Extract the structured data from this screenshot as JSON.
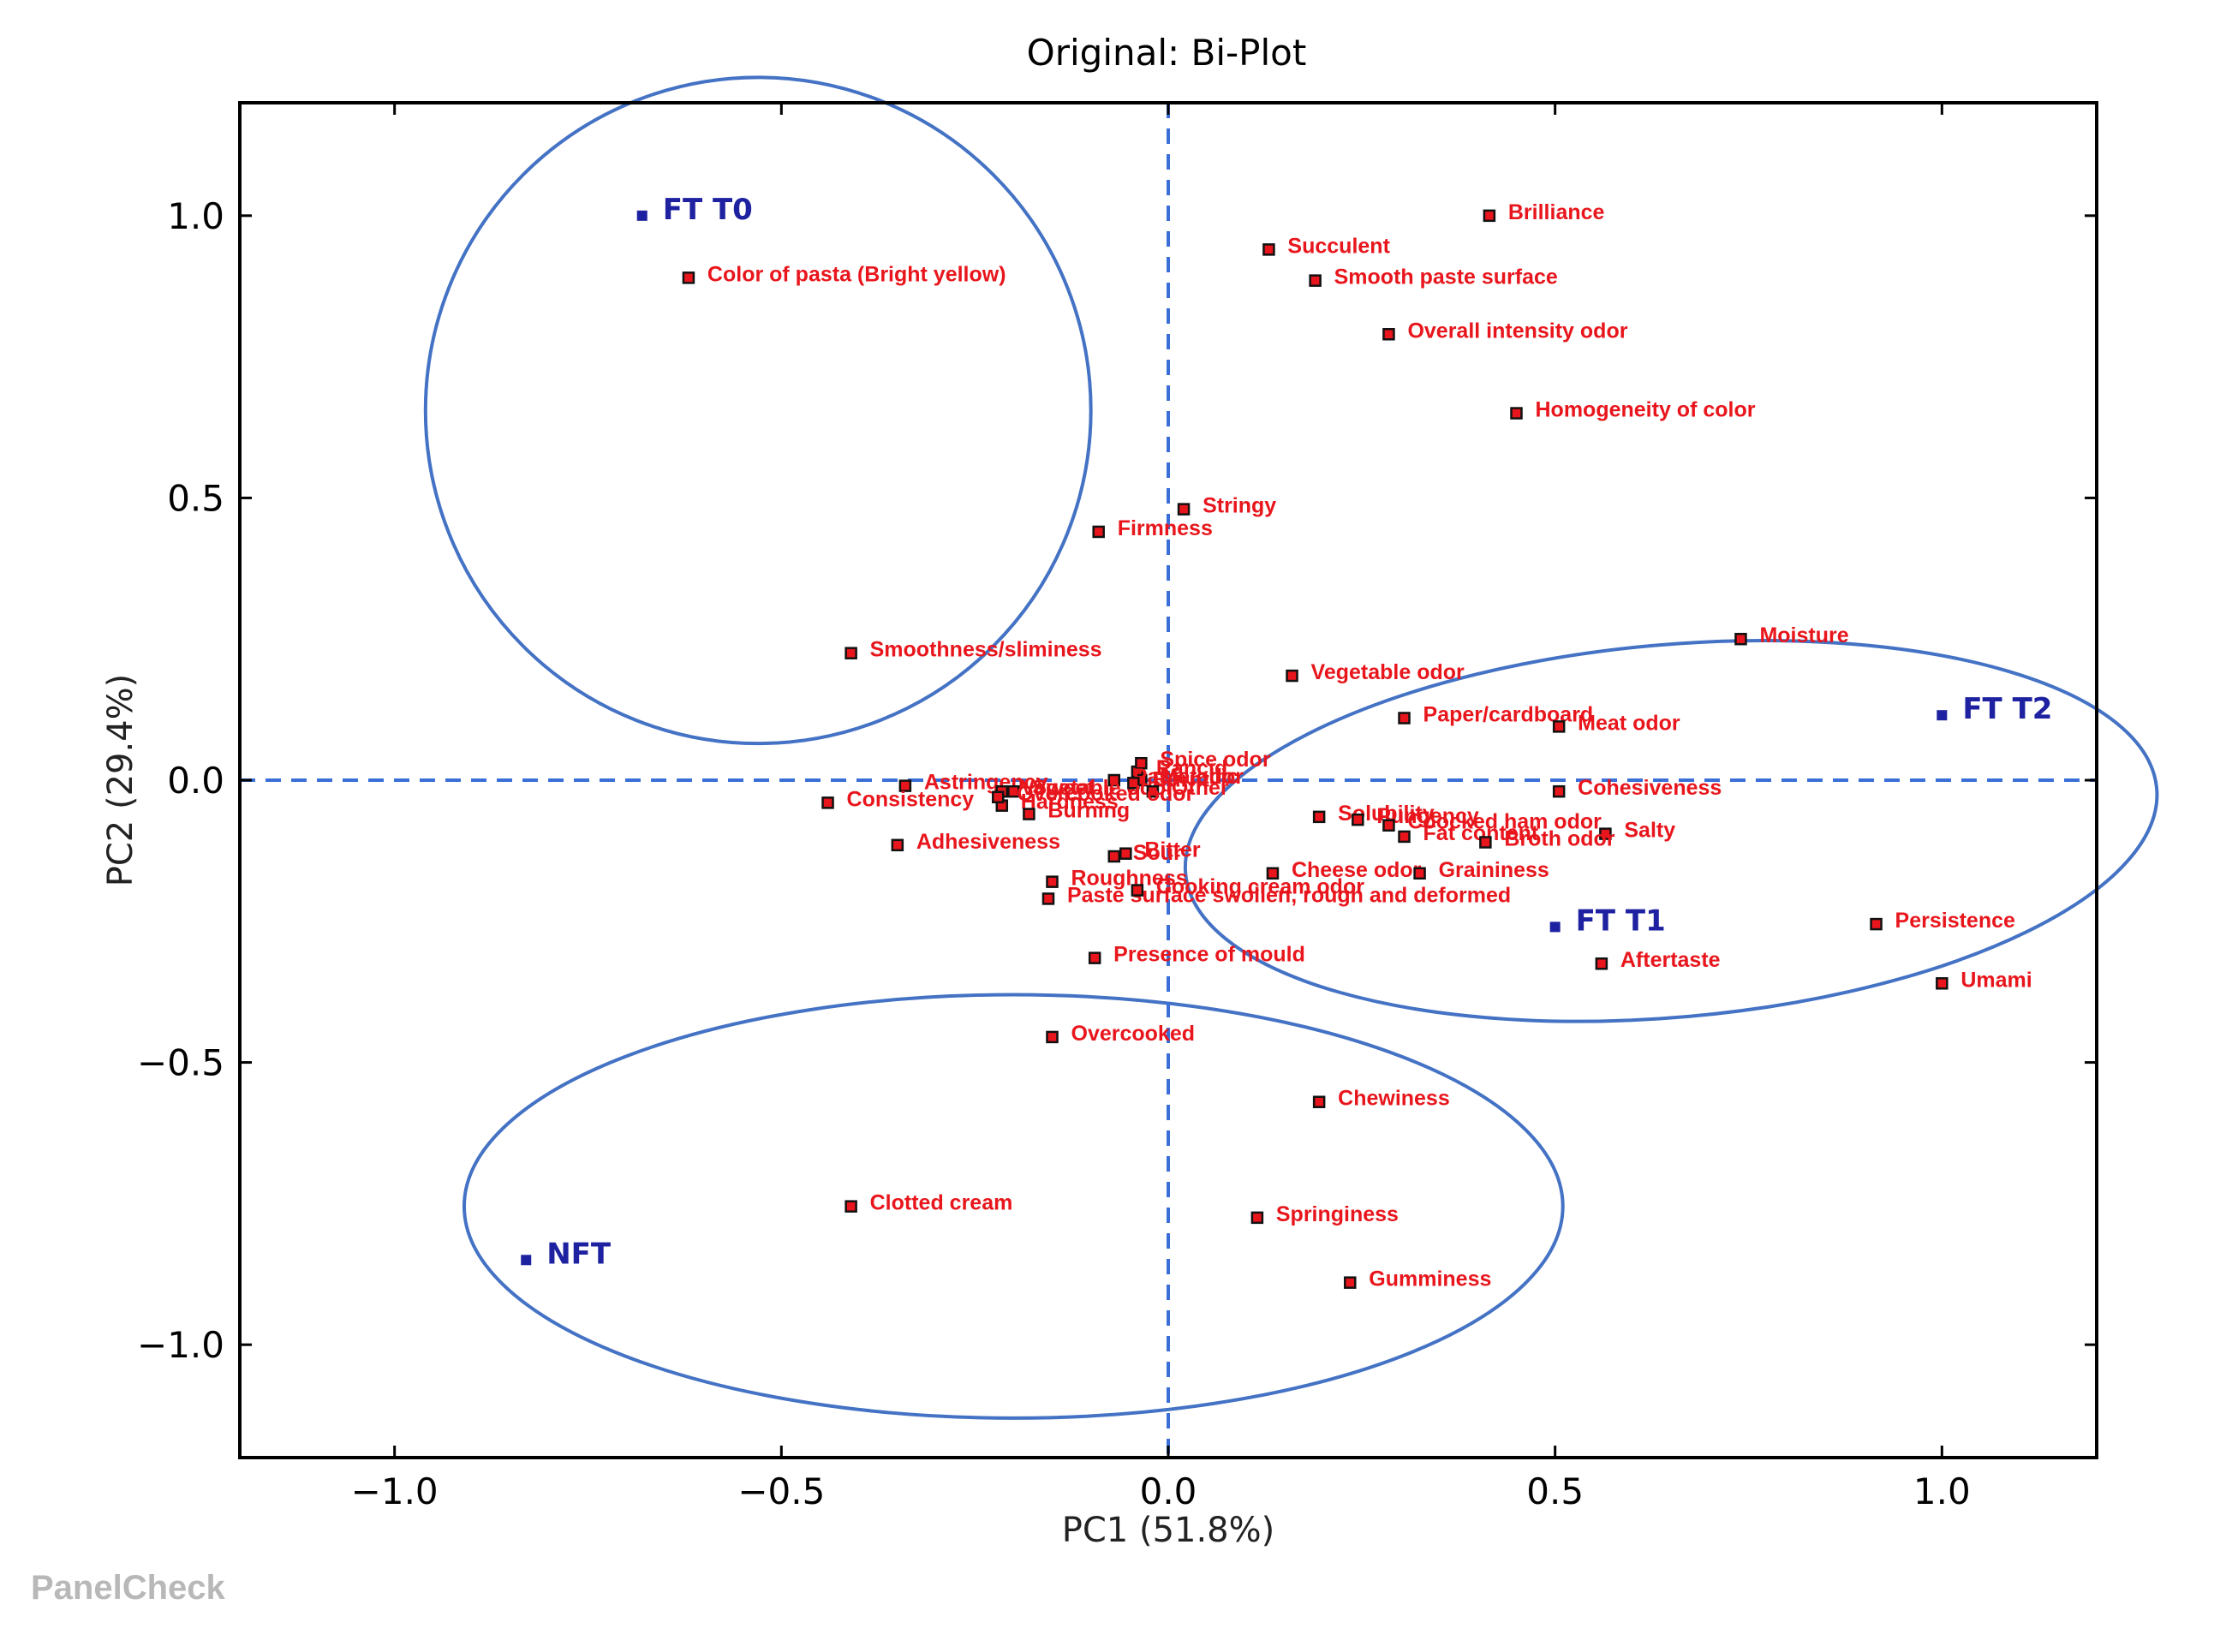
{
  "watermark": "PanelCheck",
  "chart_data": {
    "type": "scatter",
    "title": "Original: Bi-Plot",
    "xlabel": "PC1 (51.8%)",
    "ylabel": "PC2 (29.4%)",
    "xlim": [
      -1.2,
      1.2
    ],
    "ylim": [
      -1.2,
      1.2
    ],
    "xticks": [
      {
        "value": -1.0,
        "label": "−1.0"
      },
      {
        "value": -0.5,
        "label": "−0.5"
      },
      {
        "value": 0.0,
        "label": "0.0"
      },
      {
        "value": 0.5,
        "label": "0.5"
      },
      {
        "value": 1.0,
        "label": "1.0"
      }
    ],
    "yticks": [
      {
        "value": 1.0,
        "label": "1.0"
      },
      {
        "value": 0.5,
        "label": "0.5"
      },
      {
        "value": 0.0,
        "label": "0.0"
      },
      {
        "value": -0.5,
        "label": "−0.5"
      },
      {
        "value": -1.0,
        "label": "−1.0"
      }
    ],
    "colors": {
      "attribute": "#e8161c",
      "sample": "#1e22a0",
      "ellipse": "#4472c4",
      "reference": "#3a6fd8"
    },
    "samples": [
      {
        "label": "FT T0",
        "x": -0.68,
        "y": 1.0
      },
      {
        "label": "FT T2",
        "x": 1.0,
        "y": 0.115
      },
      {
        "label": "FT T1",
        "x": 0.5,
        "y": -0.26
      },
      {
        "label": "NFT",
        "x": -0.83,
        "y": -0.85
      }
    ],
    "attributes": [
      {
        "label": "Brilliance",
        "x": 0.415,
        "y": 1.0
      },
      {
        "label": "Succulent",
        "x": 0.13,
        "y": 0.94
      },
      {
        "label": "Smooth paste surface",
        "x": 0.19,
        "y": 0.885
      },
      {
        "label": "Color of pasta (Bright yellow)",
        "x": -0.62,
        "y": 0.89
      },
      {
        "label": "Overall intensity odor",
        "x": 0.285,
        "y": 0.79
      },
      {
        "label": "Homogeneity of color",
        "x": 0.45,
        "y": 0.65
      },
      {
        "label": "Stringy",
        "x": 0.02,
        "y": 0.48
      },
      {
        "label": "Firmness",
        "x": -0.09,
        "y": 0.44
      },
      {
        "label": "Moisture",
        "x": 0.74,
        "y": 0.25
      },
      {
        "label": "Smoothness/sliminess",
        "x": -0.41,
        "y": 0.225
      },
      {
        "label": "Vegetable odor",
        "x": 0.16,
        "y": 0.185
      },
      {
        "label": "Paper/cardboard",
        "x": 0.305,
        "y": 0.11
      },
      {
        "label": "Meat odor",
        "x": 0.505,
        "y": 0.095
      },
      {
        "label": "Rancid",
        "x": -0.04,
        "y": 0.015
      },
      {
        "label": "Spice odor",
        "x": -0.035,
        "y": 0.03
      },
      {
        "label": "Metallic",
        "x": -0.035,
        "y": 0.0
      },
      {
        "label": "Astringency",
        "x": -0.34,
        "y": -0.01
      },
      {
        "label": "Pasta odor",
        "x": -0.07,
        "y": 0.0
      },
      {
        "label": "Vegetable odor",
        "x": -0.215,
        "y": -0.02
      },
      {
        "label": "Sweet",
        "x": -0.2,
        "y": -0.02
      },
      {
        "label": "Burnt",
        "x": -0.045,
        "y": -0.005
      },
      {
        "label": "Other",
        "x": -0.02,
        "y": -0.02
      },
      {
        "label": "Consistency",
        "x": -0.44,
        "y": -0.04
      },
      {
        "label": "Hardness",
        "x": -0.215,
        "y": -0.045
      },
      {
        "label": "Burning",
        "x": -0.18,
        "y": -0.06
      },
      {
        "label": "Solubility",
        "x": 0.195,
        "y": -0.065
      },
      {
        "label": "Pungency",
        "x": 0.245,
        "y": -0.07
      },
      {
        "label": "Cohesiveness",
        "x": 0.505,
        "y": -0.02
      },
      {
        "label": "Coocked ham odor",
        "x": 0.285,
        "y": -0.08
      },
      {
        "label": "Fat content",
        "x": 0.305,
        "y": -0.1
      },
      {
        "label": "Salty",
        "x": 0.565,
        "y": -0.095
      },
      {
        "label": "Broth odor",
        "x": 0.41,
        "y": -0.11
      },
      {
        "label": "Overcooked odor",
        "x": -0.22,
        "y": -0.03
      },
      {
        "label": "Adhesiveness",
        "x": -0.35,
        "y": -0.115
      },
      {
        "label": "Sour",
        "x": -0.07,
        "y": -0.135
      },
      {
        "label": "Bitter",
        "x": -0.055,
        "y": -0.13
      },
      {
        "label": "Cheese odor",
        "x": 0.135,
        "y": -0.165
      },
      {
        "label": "Graininess",
        "x": 0.325,
        "y": -0.165
      },
      {
        "label": "Roughness",
        "x": -0.15,
        "y": -0.18
      },
      {
        "label": "Paste surface swollen, rough and deformed",
        "x": -0.155,
        "y": -0.21
      },
      {
        "label": "Cooking cream odor",
        "x": -0.04,
        "y": -0.195
      },
      {
        "label": "Persistence",
        "x": 0.915,
        "y": -0.255
      },
      {
        "label": "Aftertaste",
        "x": 0.56,
        "y": -0.325
      },
      {
        "label": "Umami",
        "x": 1.0,
        "y": -0.36
      },
      {
        "label": "Presence of mould",
        "x": -0.095,
        "y": -0.315
      },
      {
        "label": "Overcooked",
        "x": -0.15,
        "y": -0.455
      },
      {
        "label": "Chewiness",
        "x": 0.195,
        "y": -0.57
      },
      {
        "label": "Clotted cream",
        "x": -0.41,
        "y": -0.755
      },
      {
        "label": "Springiness",
        "x": 0.115,
        "y": -0.775
      },
      {
        "label": "Gumminess",
        "x": 0.235,
        "y": -0.89
      }
    ],
    "ellipses": [
      {
        "group": "FT T0",
        "cx": -0.53,
        "cy": 0.655,
        "rx": 0.43,
        "ry": 0.59,
        "angle": 0
      },
      {
        "group": "FT T1 / FT T2",
        "cx": 0.65,
        "cy": -0.09,
        "rx": 0.63,
        "ry": 0.33,
        "angle": -5
      },
      {
        "group": "NFT",
        "cx": -0.2,
        "cy": -0.755,
        "rx": 0.71,
        "ry": 0.375,
        "angle": 0
      }
    ]
  }
}
